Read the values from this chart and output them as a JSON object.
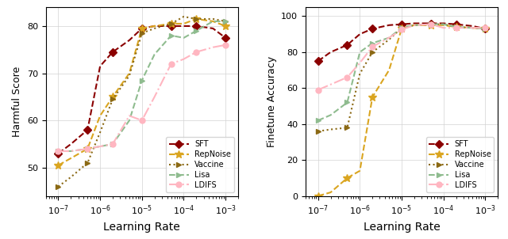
{
  "lr_values": [
    1e-07,
    2e-07,
    5e-07,
    1e-06,
    2e-06,
    5e-06,
    1e-05,
    2e-05,
    5e-05,
    0.0001,
    0.0002,
    0.0005,
    0.001
  ],
  "harmful_SFT": [
    53.0,
    55.0,
    58.0,
    71.5,
    74.5,
    77.0,
    79.5,
    80.0,
    80.0,
    80.0,
    80.0,
    79.5,
    77.5
  ],
  "harmful_RepNoise": [
    50.5,
    52.0,
    54.0,
    61.0,
    65.0,
    70.0,
    79.5,
    80.0,
    80.5,
    80.5,
    81.5,
    81.0,
    80.0
  ],
  "harmful_Vaccine": [
    46.0,
    48.0,
    51.0,
    57.5,
    64.5,
    69.5,
    78.5,
    79.5,
    80.5,
    82.0,
    81.5,
    81.5,
    81.0
  ],
  "harmful_Lisa": [
    53.5,
    53.5,
    54.0,
    54.5,
    55.0,
    60.0,
    68.5,
    74.0,
    78.0,
    77.5,
    79.0,
    81.0,
    81.0
  ],
  "harmful_LDIFS": [
    53.5,
    53.5,
    54.0,
    54.5,
    55.0,
    61.0,
    60.0,
    65.0,
    72.0,
    73.0,
    74.5,
    75.5,
    76.0
  ],
  "finetune_SFT": [
    75.0,
    80.0,
    84.0,
    90.0,
    93.0,
    95.0,
    95.5,
    96.0,
    96.0,
    96.0,
    95.5,
    94.5,
    93.0
  ],
  "finetune_RepNoise": [
    0.0,
    2.0,
    10.0,
    14.0,
    55.0,
    70.0,
    93.0,
    95.0,
    95.0,
    95.0,
    94.0,
    93.5,
    93.0
  ],
  "finetune_Vaccine": [
    36.0,
    37.0,
    38.0,
    68.0,
    80.0,
    87.0,
    93.5,
    95.0,
    95.5,
    95.5,
    94.0,
    93.5,
    93.0
  ],
  "finetune_Lisa": [
    42.0,
    45.0,
    52.0,
    80.0,
    85.0,
    88.0,
    93.5,
    95.0,
    95.5,
    95.5,
    94.0,
    93.5,
    93.0
  ],
  "finetune_LDIFS": [
    59.0,
    62.0,
    66.0,
    74.0,
    83.0,
    88.0,
    92.5,
    95.0,
    95.5,
    93.5,
    93.5,
    93.5,
    93.5
  ],
  "colors": {
    "SFT": "#8B0000",
    "RepNoise": "#DAA520",
    "Vaccine": "#8B6914",
    "Lisa": "#8FBC8F",
    "LDIFS": "#FFB6C1"
  },
  "linestyles": {
    "SFT": "--",
    "RepNoise": "--",
    "Vaccine": ":",
    "Lisa": "--",
    "LDIFS": "-."
  },
  "markers": {
    "SFT": "D",
    "RepNoise": "*",
    "Vaccine": ">",
    "Lisa": ">",
    "LDIFS": "o"
  },
  "ylabel_left": "Harmful Score",
  "ylabel_right": "Finetune Accuracy",
  "xlabel": "Learning Rate",
  "ylim_left": [
    44,
    84
  ],
  "ylim_right": [
    0,
    105
  ],
  "yticks_left": [
    50,
    60,
    70,
    80
  ],
  "yticks_right": [
    0,
    20,
    40,
    60,
    80,
    100
  ]
}
